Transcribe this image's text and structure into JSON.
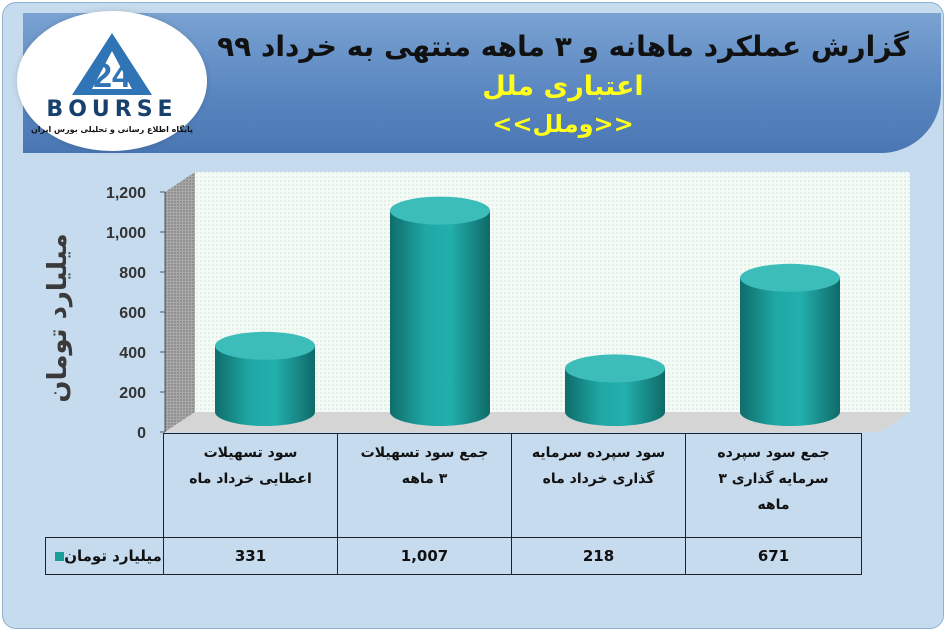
{
  "header": {
    "title": "گزارش عملکرد ماهانه و ۳ ماهه منتهی به خرداد ۹۹",
    "company": "اعتباری ملل",
    "symbol": "<<وملل>>"
  },
  "logo": {
    "brand": "BOURSE",
    "tagline": "پایگاه اطلاع رسانی و تحلیلی بورس ایران"
  },
  "colors": {
    "bar": "#1a9c9a",
    "bar_top": "#3cbdba",
    "background": "#c6dbee",
    "banner": "#5b87c1",
    "title_yellow": "#ffff1a"
  },
  "chart_data": {
    "type": "bar",
    "style": "3d-cylinder",
    "categories": [
      "سود تسهیلات اعطایی خرداد ماه",
      "جمع سود تسهیلات ۳ ماهه",
      "سود سپرده سرمایه گذاری خرداد ماه",
      "جمع سود سپرده سرمایه گذاری ۳ ماهه"
    ],
    "series": [
      {
        "name": "میلیارد تومان",
        "values": [
          331,
          1007,
          218,
          671
        ]
      }
    ],
    "ylabel": "میلیارد تومان",
    "ylim": [
      0,
      1200
    ],
    "yticks": [
      "0",
      "200",
      "400",
      "600",
      "800",
      "1,000",
      "1,200"
    ],
    "value_labels": [
      "331",
      "1,007",
      "218",
      "671"
    ],
    "grid": false,
    "legend": "data-table"
  },
  "table": {
    "headers": [
      [
        "سود تسهیلات",
        "اعطایی خرداد  ماه"
      ],
      [
        "جمع سود تسهیلات",
        "۳ ماهه"
      ],
      [
        "سود سپرده سرمایه",
        "گذاری خرداد  ماه"
      ],
      [
        "جمع سود سپرده",
        "سرمایه گذاری ۳",
        "ماهه"
      ]
    ],
    "legend_label": "میلیارد تومان"
  }
}
